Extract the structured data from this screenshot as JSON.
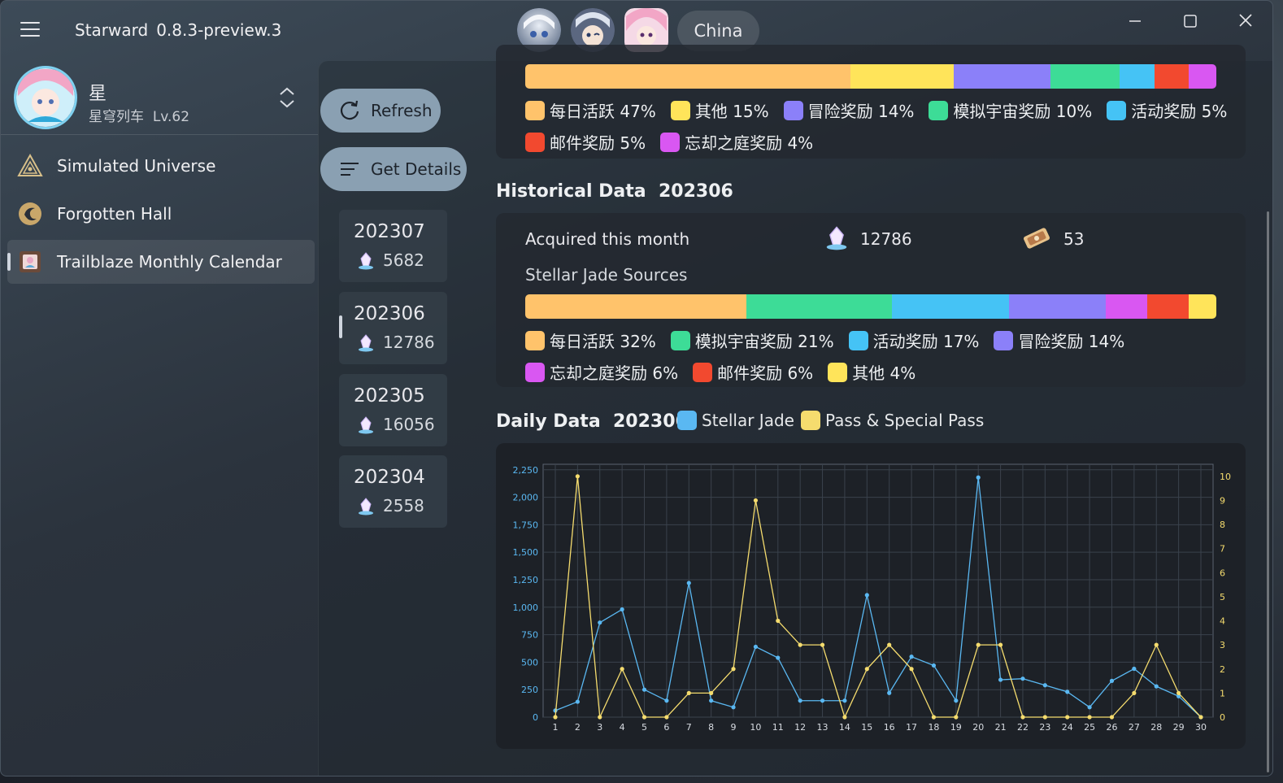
{
  "app": {
    "name": "Starward",
    "version": "0.8.3-preview.3"
  },
  "titlebar": {
    "region": "China"
  },
  "account": {
    "name": "星",
    "server": "星穹列车",
    "level": "Lv.62"
  },
  "nav": [
    {
      "label": "Simulated Universe",
      "icon": "simulated-universe-icon"
    },
    {
      "label": "Forgotten Hall",
      "icon": "forgotten-hall-icon"
    },
    {
      "label": "Trailblaze Monthly Calendar",
      "icon": "calendar-icon",
      "active": true
    }
  ],
  "actions": {
    "refresh": "Refresh",
    "details": "Get Details"
  },
  "months": [
    {
      "month": "202307",
      "jade": "5682"
    },
    {
      "month": "202306",
      "jade": "12786"
    },
    {
      "month": "202305",
      "jade": "16056"
    },
    {
      "month": "202304",
      "jade": "2558"
    }
  ],
  "top_breakdown": {
    "segments": [
      {
        "label": "每日活跃 47%",
        "pct": 47,
        "color": "#FFC36B"
      },
      {
        "label": "其他 15%",
        "pct": 15,
        "color": "#FFE45A"
      },
      {
        "label": "冒险奖励 14%",
        "pct": 14,
        "color": "#8B80F9"
      },
      {
        "label": "模拟宇宙奖励 10%",
        "pct": 10,
        "color": "#3DDC97"
      },
      {
        "label": "活动奖励 5%",
        "pct": 5,
        "color": "#45C3F5"
      },
      {
        "label": "邮件奖励 5%",
        "pct": 5,
        "color": "#F2492F"
      },
      {
        "label": "忘却之庭奖励 4%",
        "pct": 4,
        "color": "#D957F2"
      }
    ]
  },
  "historical": {
    "title": "Historical Data",
    "month": "202306",
    "acquired_label": "Acquired this month",
    "jade_total": "12786",
    "pass_total": "53",
    "sources_label": "Stellar Jade Sources",
    "segments": [
      {
        "label": "每日活跃 32%",
        "pct": 32,
        "color": "#FFC36B"
      },
      {
        "label": "模拟宇宙奖励 21%",
        "pct": 21,
        "color": "#3DDC97"
      },
      {
        "label": "活动奖励 17%",
        "pct": 17,
        "color": "#45C3F5"
      },
      {
        "label": "冒险奖励 14%",
        "pct": 14,
        "color": "#8B80F9"
      },
      {
        "label": "忘却之庭奖励 6%",
        "pct": 6,
        "color": "#D957F2"
      },
      {
        "label": "邮件奖励 6%",
        "pct": 6,
        "color": "#F2492F"
      },
      {
        "label": "其他 4%",
        "pct": 4,
        "color": "#FFE45A"
      }
    ]
  },
  "daily": {
    "title": "Daily Data",
    "month": "202306",
    "legend_jade": "Stellar Jade",
    "legend_pass": "Pass & Special Pass",
    "jade_color": "#5AB8F2",
    "pass_color": "#F5DC6E"
  },
  "chart_data": {
    "type": "line",
    "x": [
      1,
      2,
      3,
      4,
      5,
      6,
      7,
      8,
      9,
      10,
      11,
      12,
      13,
      14,
      15,
      16,
      17,
      18,
      19,
      20,
      21,
      22,
      23,
      24,
      25,
      26,
      27,
      28,
      29,
      30
    ],
    "y_left_ticks": [
      "0",
      "250",
      "500",
      "750",
      "1,000",
      "1,250",
      "1,500",
      "1,750",
      "2,000",
      "2,250"
    ],
    "y_right_ticks": [
      "0",
      "1",
      "2",
      "3",
      "4",
      "5",
      "6",
      "7",
      "8",
      "9",
      "10"
    ],
    "ylim_left": [
      0,
      2300
    ],
    "ylim_right": [
      0,
      10.5
    ],
    "series": [
      {
        "name": "Stellar Jade",
        "axis": "left",
        "color": "#5AB8F2",
        "values": [
          60,
          140,
          860,
          980,
          250,
          150,
          1220,
          150,
          90,
          640,
          540,
          150,
          150,
          150,
          1110,
          220,
          550,
          470,
          150,
          2180,
          340,
          350,
          290,
          230,
          90,
          330,
          440,
          280,
          190,
          0
        ]
      },
      {
        "name": "Pass & Special Pass",
        "axis": "right",
        "color": "#F5DC6E",
        "values": [
          0,
          10,
          0,
          2,
          0,
          0,
          1,
          1,
          2,
          9,
          4,
          3,
          3,
          0,
          2,
          3,
          2,
          0,
          0,
          3,
          3,
          0,
          0,
          0,
          0,
          0,
          1,
          3,
          1,
          0
        ]
      }
    ],
    "grid": true
  }
}
